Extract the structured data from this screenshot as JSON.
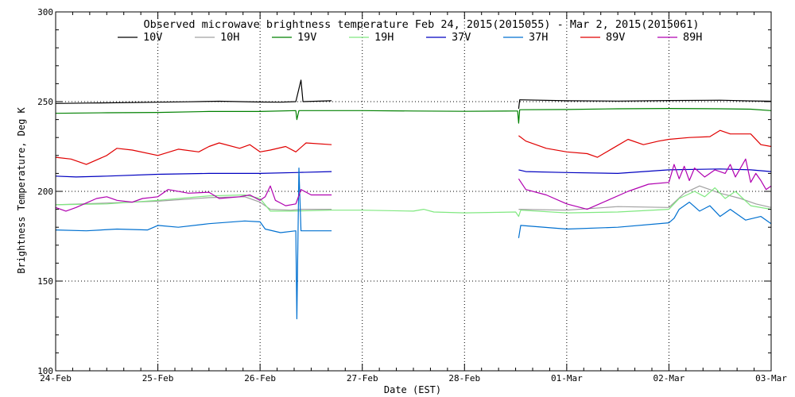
{
  "chart_data": {
    "type": "line",
    "title": "Observed microwave brightness temperature Feb 24, 2015(2015055) - Mar  2, 2015(2015061)",
    "xlabel": "Date (EST)",
    "ylabel": "Brightness Temperature, Deg K",
    "ylim": [
      100,
      300
    ],
    "xlim": [
      0,
      7
    ],
    "yticks": [
      100,
      150,
      200,
      250,
      300
    ],
    "x_tick_labels": [
      "24-Feb",
      "25-Feb",
      "26-Feb",
      "27-Feb",
      "28-Feb",
      "01-Mar",
      "02-Mar",
      "03-Mar"
    ],
    "grid": "dotted, at major ticks (x at each day except 24-Feb; y at 150, 200, 250)",
    "legend_position": "top",
    "series": [
      {
        "name": "10V",
        "color": "#000000",
        "points": [
          [
            0,
            249
          ],
          [
            0.3,
            249.2
          ],
          [
            0.6,
            249.4
          ],
          [
            1,
            249.7
          ],
          [
            1.3,
            249.9
          ],
          [
            1.6,
            250.2
          ],
          [
            2,
            249.8
          ],
          [
            2.2,
            249.7
          ],
          [
            2.35,
            250
          ],
          [
            2.4,
            262
          ],
          [
            2.42,
            250
          ],
          [
            2.7,
            250.5
          ],
          [
            2.72,
            null
          ],
          [
            4.52,
            null
          ],
          [
            4.53,
            246
          ],
          [
            4.54,
            251
          ],
          [
            5,
            250.5
          ],
          [
            5.5,
            250.3
          ],
          [
            6,
            250.6
          ],
          [
            6.5,
            250.8
          ],
          [
            6.8,
            250.4
          ],
          [
            7,
            250.2
          ]
        ]
      },
      {
        "name": "10H",
        "color": "#a0a0a0",
        "points": [
          [
            0,
            192.5
          ],
          [
            0.5,
            193.5
          ],
          [
            1,
            194.5
          ],
          [
            1.5,
            196.5
          ],
          [
            1.85,
            197
          ],
          [
            2,
            194
          ],
          [
            2.1,
            190
          ],
          [
            2.3,
            189.5
          ],
          [
            2.4,
            190
          ],
          [
            2.7,
            190
          ],
          [
            2.72,
            null
          ],
          [
            4.52,
            null
          ],
          [
            4.53,
            190
          ],
          [
            5,
            189.5
          ],
          [
            5.5,
            191.5
          ],
          [
            6,
            191
          ],
          [
            6.15,
            199
          ],
          [
            6.3,
            203
          ],
          [
            6.5,
            199
          ],
          [
            6.7,
            196
          ],
          [
            6.85,
            193
          ],
          [
            7,
            191
          ]
        ]
      },
      {
        "name": "19V",
        "color": "#008000",
        "points": [
          [
            0,
            243.5
          ],
          [
            0.5,
            243.8
          ],
          [
            1,
            244
          ],
          [
            1.5,
            244.5
          ],
          [
            2,
            244.5
          ],
          [
            2.35,
            245
          ],
          [
            2.36,
            240
          ],
          [
            2.38,
            245
          ],
          [
            2.5,
            245
          ],
          [
            3,
            245
          ],
          [
            3.5,
            244.8
          ],
          [
            4,
            244.6
          ],
          [
            4.5,
            244.8
          ],
          [
            4.52,
            244.8
          ],
          [
            4.53,
            238
          ],
          [
            4.54,
            245.5
          ],
          [
            5,
            245.6
          ],
          [
            5.5,
            246
          ],
          [
            6,
            246.2
          ],
          [
            6.5,
            246
          ],
          [
            6.8,
            245.8
          ],
          [
            7,
            245
          ]
        ]
      },
      {
        "name": "19H",
        "color": "#80e880",
        "points": [
          [
            0,
            192.5
          ],
          [
            0.5,
            193
          ],
          [
            1,
            195
          ],
          [
            1.5,
            197.5
          ],
          [
            1.85,
            198
          ],
          [
            2,
            196
          ],
          [
            2.1,
            189
          ],
          [
            2.3,
            189
          ],
          [
            2.7,
            189.5
          ],
          [
            3,
            189.5
          ],
          [
            3.5,
            189
          ],
          [
            3.6,
            190
          ],
          [
            3.7,
            188.5
          ],
          [
            4,
            188
          ],
          [
            4.5,
            188.5
          ],
          [
            4.53,
            186
          ],
          [
            4.55,
            189.5
          ],
          [
            5,
            188
          ],
          [
            5.5,
            188.5
          ],
          [
            6,
            190
          ],
          [
            6.1,
            196
          ],
          [
            6.25,
            200
          ],
          [
            6.35,
            197
          ],
          [
            6.45,
            202
          ],
          [
            6.55,
            196
          ],
          [
            6.65,
            200
          ],
          [
            6.8,
            192
          ],
          [
            7,
            190
          ]
        ]
      },
      {
        "name": "37V",
        "color": "#0000c0",
        "points": [
          [
            0,
            208.5
          ],
          [
            0.2,
            208
          ],
          [
            0.5,
            208.5
          ],
          [
            1,
            209.5
          ],
          [
            1.5,
            210
          ],
          [
            2,
            210
          ],
          [
            2.35,
            210.5
          ],
          [
            2.7,
            211
          ],
          [
            2.72,
            null
          ],
          [
            4.52,
            null
          ],
          [
            4.53,
            212
          ],
          [
            4.6,
            211
          ],
          [
            5,
            210.5
          ],
          [
            5.5,
            210
          ],
          [
            6,
            212
          ],
          [
            6.5,
            212.5
          ],
          [
            6.8,
            212
          ],
          [
            7,
            211
          ]
        ]
      },
      {
        "name": "37H",
        "color": "#0070d0",
        "points": [
          [
            0,
            178.5
          ],
          [
            0.3,
            178
          ],
          [
            0.6,
            179
          ],
          [
            0.9,
            178.5
          ],
          [
            1,
            181
          ],
          [
            1.2,
            180
          ],
          [
            1.5,
            182
          ],
          [
            1.85,
            183.5
          ],
          [
            2,
            183
          ],
          [
            2.05,
            179
          ],
          [
            2.2,
            177
          ],
          [
            2.35,
            178
          ],
          [
            2.36,
            129
          ],
          [
            2.38,
            213
          ],
          [
            2.4,
            178
          ],
          [
            2.7,
            178
          ],
          [
            2.72,
            null
          ],
          [
            4.52,
            null
          ],
          [
            4.53,
            174
          ],
          [
            4.55,
            181
          ],
          [
            5,
            179
          ],
          [
            5.5,
            180
          ],
          [
            6,
            182.5
          ],
          [
            6.05,
            185
          ],
          [
            6.1,
            190
          ],
          [
            6.2,
            194
          ],
          [
            6.3,
            189
          ],
          [
            6.4,
            192
          ],
          [
            6.5,
            186
          ],
          [
            6.6,
            190
          ],
          [
            6.75,
            184
          ],
          [
            6.9,
            186
          ],
          [
            7,
            182
          ]
        ]
      },
      {
        "name": "89V",
        "color": "#e00000",
        "points": [
          [
            0,
            219
          ],
          [
            0.15,
            218
          ],
          [
            0.3,
            215
          ],
          [
            0.5,
            220
          ],
          [
            0.6,
            224
          ],
          [
            0.75,
            223
          ],
          [
            1,
            220
          ],
          [
            1.2,
            223.5
          ],
          [
            1.4,
            222
          ],
          [
            1.5,
            225
          ],
          [
            1.6,
            227
          ],
          [
            1.8,
            224
          ],
          [
            1.9,
            226
          ],
          [
            2,
            222
          ],
          [
            2.1,
            223
          ],
          [
            2.25,
            225
          ],
          [
            2.35,
            222
          ],
          [
            2.45,
            227
          ],
          [
            2.7,
            226
          ],
          [
            2.72,
            null
          ],
          [
            4.52,
            null
          ],
          [
            4.53,
            231
          ],
          [
            4.6,
            228
          ],
          [
            4.8,
            224
          ],
          [
            5,
            222
          ],
          [
            5.2,
            221
          ],
          [
            5.3,
            219
          ],
          [
            5.45,
            224
          ],
          [
            5.6,
            229
          ],
          [
            5.75,
            226
          ],
          [
            5.9,
            228
          ],
          [
            6,
            229
          ],
          [
            6.2,
            230
          ],
          [
            6.4,
            230.5
          ],
          [
            6.5,
            234
          ],
          [
            6.6,
            232
          ],
          [
            6.8,
            232
          ],
          [
            6.9,
            226
          ],
          [
            7,
            225
          ]
        ]
      },
      {
        "name": "89H",
        "color": "#b000b0",
        "points": [
          [
            0,
            191
          ],
          [
            0.1,
            189
          ],
          [
            0.2,
            191
          ],
          [
            0.4,
            196
          ],
          [
            0.5,
            197
          ],
          [
            0.6,
            195
          ],
          [
            0.75,
            194
          ],
          [
            0.85,
            196
          ],
          [
            1,
            197
          ],
          [
            1.1,
            201
          ],
          [
            1.3,
            199
          ],
          [
            1.5,
            199.5
          ],
          [
            1.6,
            196
          ],
          [
            1.8,
            197
          ],
          [
            1.9,
            198
          ],
          [
            2.0,
            195
          ],
          [
            2.05,
            197
          ],
          [
            2.1,
            203
          ],
          [
            2.15,
            195
          ],
          [
            2.25,
            192
          ],
          [
            2.35,
            193
          ],
          [
            2.4,
            201
          ],
          [
            2.5,
            198
          ],
          [
            2.7,
            198
          ],
          [
            2.72,
            null
          ],
          [
            4.52,
            null
          ],
          [
            4.53,
            207
          ],
          [
            4.6,
            201
          ],
          [
            4.8,
            198
          ],
          [
            5,
            193
          ],
          [
            5.2,
            190
          ],
          [
            5.4,
            195
          ],
          [
            5.6,
            200
          ],
          [
            5.8,
            204
          ],
          [
            6,
            205
          ],
          [
            6.05,
            215
          ],
          [
            6.1,
            207
          ],
          [
            6.15,
            214
          ],
          [
            6.2,
            206
          ],
          [
            6.25,
            213
          ],
          [
            6.35,
            208
          ],
          [
            6.45,
            212
          ],
          [
            6.55,
            210
          ],
          [
            6.6,
            215
          ],
          [
            6.65,
            208
          ],
          [
            6.75,
            218
          ],
          [
            6.8,
            205
          ],
          [
            6.85,
            210
          ],
          [
            6.9,
            206
          ],
          [
            6.95,
            201
          ],
          [
            7,
            203
          ]
        ]
      }
    ]
  }
}
